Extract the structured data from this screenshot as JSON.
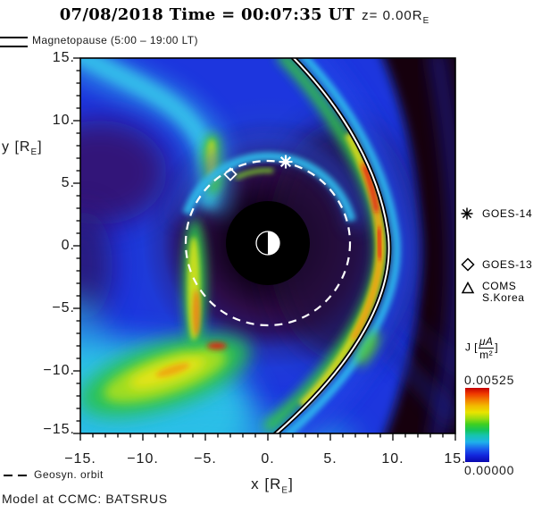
{
  "title": {
    "main": "07/08/2018 Time = 00:07:35 UT",
    "z_prefix": "z= 0.00R",
    "z_sub": "E"
  },
  "magnetopause_legend": "Magnetopause (5:00 – 19:00 LT)",
  "axes": {
    "x": {
      "label_pre": "x [R",
      "label_sub": "E",
      "label_post": "]",
      "ticks": [
        "−15.",
        "−10.",
        "−5.",
        "0.",
        "5.",
        "10.",
        "15."
      ]
    },
    "y": {
      "label_pre": "y [R",
      "label_sub": "E",
      "label_post": "]",
      "ticks": [
        "15.",
        "10.",
        "5.",
        "0.",
        "−5.",
        "−10.",
        "−15."
      ]
    }
  },
  "satellite_legend": {
    "goes14": "GOES-14",
    "goes13": "GOES-13",
    "coms_line1": "COMS",
    "coms_line2": "S.Korea"
  },
  "colorbar": {
    "quantity": "J",
    "bracket_open": "[",
    "unit_numerator": "μA",
    "unit_denominator": "m²",
    "bracket_close": "]",
    "max": "0.00525",
    "min": "0.00000"
  },
  "footer": {
    "geosyn": "Geosyn. orbit",
    "credit": "Model at CCMC: BATSRUS"
  },
  "chart_data": {
    "type": "heatmap",
    "title": "07/08/2018 Time = 00:07:35 UT z= 0.00RE",
    "xlabel": "x [RE]",
    "ylabel": "y [RE]",
    "xlim": [
      -15,
      15
    ],
    "ylim": [
      -15,
      15
    ],
    "x_major_ticks": [
      -15,
      -10,
      -5,
      0,
      5,
      10,
      15
    ],
    "y_major_ticks": [
      -15,
      -10,
      -5,
      0,
      5,
      10,
      15
    ],
    "grid": false,
    "colorbar": {
      "label": "J [uA/m2]",
      "min": 0.0,
      "max": 0.00525,
      "palette": "rainbow (blue=low, red=high)",
      "position": "right"
    },
    "overlays": [
      {
        "name": "magnetopause",
        "style": "white line with black edging",
        "label": "Magnetopause (5:00 - 19:00 LT)",
        "nose_x_re": 9.6,
        "top_crossing_x_re": 1.5,
        "bottom_crossing_x_re": 0.5
      },
      {
        "name": "geosynchronous-orbit",
        "style": "white dashed circle",
        "center_re": [
          0,
          0
        ],
        "radius_re": 6.6,
        "label": "Geosyn. orbit"
      },
      {
        "name": "inner-boundary",
        "style": "filled black circle",
        "center_re": [
          0,
          0
        ],
        "radius_re": 3.4
      },
      {
        "name": "earth",
        "style": "circle, dayside (+x) half white, nightside half black",
        "radius_re": 0.95
      }
    ],
    "markers": [
      {
        "name": "GOES-14",
        "symbol": "asterisk",
        "color": "white",
        "x_re": 1.4,
        "y_re": 6.5
      },
      {
        "name": "GOES-13",
        "symbol": "diamond",
        "color": "white",
        "x_re": -3.0,
        "y_re": 5.5
      },
      {
        "name": "COMS S.Korea",
        "symbol": "triangle",
        "visible_on_plot": false
      }
    ],
    "notable_features": [
      "bright green/yellow/red current layer just inside dayside magnetopause",
      "dark (near-zero J) region outside magnetopause on right side",
      "cyan sheath band tracking the magnetopause",
      "yellow-green diagonal current streak in lower-left (pre-midnight) sector",
      "vertical green/orange streak near x=-6 RE on dusk flank",
      "green blob and cyan arc near top of geosynchronous ring",
      "dark purple low-J annulus surrounding the inner boundary"
    ]
  }
}
